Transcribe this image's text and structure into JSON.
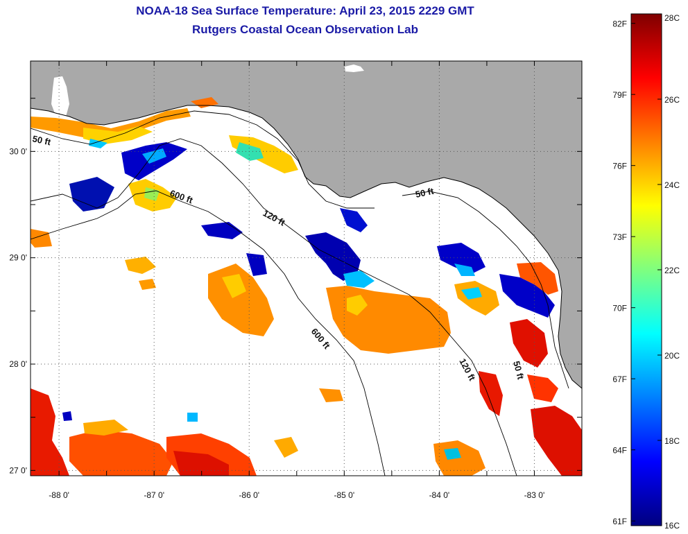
{
  "title": "NOAA-18 Sea Surface Temperature:  April 23, 2015 2229 GMT",
  "subtitle": "Rutgers Coastal Ocean Observation Lab",
  "map": {
    "lon_labels": [
      "-88 0'",
      "-87 0'",
      "-86 0'",
      "-85 0'",
      "-84 0'",
      "-83 0'"
    ],
    "lat_labels": [
      "30 0'",
      "29 0'",
      "28 0'",
      "27 0'"
    ],
    "lon_range": [
      -88.3,
      -82.5
    ],
    "lat_range": [
      26.95,
      30.85
    ],
    "depth_contours": [
      "50 ft",
      "120 ft",
      "600 ft"
    ],
    "depth_contour_labels": [
      "50 ft",
      "600 ft",
      "120 ft",
      "50 ft",
      "600 ft",
      "120 ft",
      "50 ft"
    ],
    "colors": {
      "land": "#a9a9a9",
      "cloud": "#ffffff",
      "grid": "#555555"
    }
  },
  "colorbar": {
    "fahrenheit_labels": [
      "82F",
      "79F",
      "76F",
      "73F",
      "70F",
      "67F",
      "64F",
      "61F"
    ],
    "celsius_labels": [
      "28C",
      "26C",
      "24C",
      "22C",
      "20C",
      "18C",
      "16C"
    ],
    "range_c": [
      16,
      28
    ],
    "colormap": "jet"
  }
}
